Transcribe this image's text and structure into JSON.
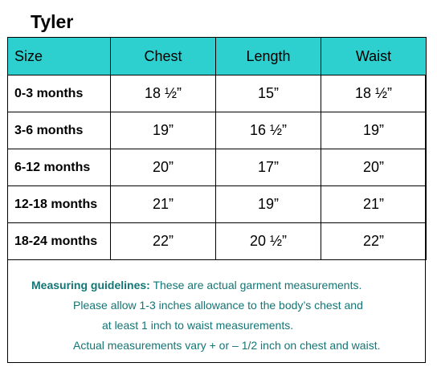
{
  "title": "Tyler",
  "table": {
    "headers": [
      "Size",
      "Chest",
      "Length",
      "Waist"
    ],
    "rows": [
      {
        "size": "0-3 months",
        "chest": "18 ½”",
        "length": "15”",
        "waist": "18 ½”"
      },
      {
        "size": "3-6 months",
        "chest": "19”",
        "length": "16 ½”",
        "waist": "19”"
      },
      {
        "size": "6-12 months",
        "chest": "20”",
        "length": "17”",
        "waist": "20”"
      },
      {
        "size": "12-18 months",
        "chest": "21”",
        "length": "19”",
        "waist": "21”"
      },
      {
        "size": "18-24 months",
        "chest": "22”",
        "length": "20 ½”",
        "waist": "22”"
      }
    ]
  },
  "guidelines": {
    "label": "Measuring guidelines:",
    "line1": " These are actual garment measurements.",
    "line2": "Please allow 1-3 inches allowance to the body’s chest and",
    "line3": "at least 1 inch to waist measurements.",
    "line4": "Actual measurements vary + or – 1/2 inch on chest and waist."
  },
  "colors": {
    "header_bg": "#2ecfcf",
    "guidelines_text": "#137575"
  }
}
